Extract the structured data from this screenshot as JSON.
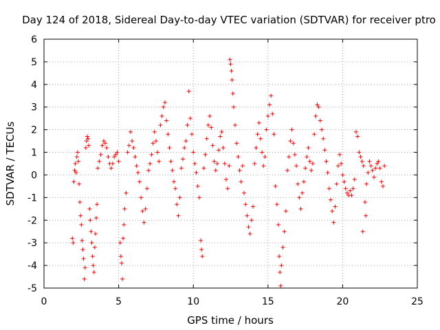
{
  "chart_data": {
    "type": "scatter",
    "title": "Day 124 of 2018, Sidereal Day-to-day VTEC variation (SDTVAR) for receiver ptro",
    "xlabel": "GPS time / hours",
    "ylabel": "SDTVAR / TECUs",
    "xlim": [
      0,
      25
    ],
    "ylim": [
      -5,
      6
    ],
    "xticks": [
      0,
      5,
      10,
      15,
      20,
      25
    ],
    "yticks": [
      -5,
      -4,
      -3,
      -2,
      -1,
      0,
      1,
      2,
      3,
      4,
      5,
      6
    ],
    "grid": true,
    "marker": "+",
    "color": "#ff0000",
    "series": [
      {
        "name": "SDTVAR",
        "points": [
          [
            1.9,
            -2.8
          ],
          [
            1.95,
            -3.0
          ],
          [
            2.0,
            -0.3
          ],
          [
            2.05,
            0.2
          ],
          [
            2.1,
            0.5
          ],
          [
            2.15,
            0.1
          ],
          [
            2.2,
            0.8
          ],
          [
            2.25,
            1.0
          ],
          [
            2.3,
            0.6
          ],
          [
            2.35,
            -0.4
          ],
          [
            2.4,
            -1.2
          ],
          [
            2.45,
            -1.8
          ],
          [
            2.5,
            -2.2
          ],
          [
            2.55,
            -2.9
          ],
          [
            2.6,
            -3.3
          ],
          [
            2.65,
            -3.7
          ],
          [
            2.7,
            -4.6
          ],
          [
            2.75,
            -4.1
          ],
          [
            2.8,
            1.2
          ],
          [
            2.85,
            1.5
          ],
          [
            2.9,
            1.7
          ],
          [
            2.95,
            1.6
          ],
          [
            3.0,
            1.3
          ],
          [
            3.05,
            -1.5
          ],
          [
            3.1,
            -2.0
          ],
          [
            3.15,
            -2.5
          ],
          [
            3.2,
            -3.0
          ],
          [
            3.25,
            -3.6
          ],
          [
            3.3,
            -4.0
          ],
          [
            3.35,
            -4.3
          ],
          [
            3.4,
            -3.2
          ],
          [
            3.45,
            -2.6
          ],
          [
            3.5,
            -1.9
          ],
          [
            3.55,
            -1.3
          ],
          [
            3.6,
            0.3
          ],
          [
            3.7,
            0.6
          ],
          [
            3.8,
            0.9
          ],
          [
            3.9,
            1.3
          ],
          [
            4.0,
            1.5
          ],
          [
            4.1,
            1.4
          ],
          [
            4.2,
            1.2
          ],
          [
            4.3,
            0.8
          ],
          [
            4.4,
            0.5
          ],
          [
            4.5,
            0.3
          ],
          [
            4.6,
            0.5
          ],
          [
            4.7,
            0.8
          ],
          [
            4.8,
            0.9
          ],
          [
            4.9,
            1.0
          ],
          [
            5.0,
            0.6
          ],
          [
            5.1,
            -3.0
          ],
          [
            5.15,
            -3.6
          ],
          [
            5.2,
            -3.9
          ],
          [
            5.25,
            -4.6
          ],
          [
            5.3,
            -2.8
          ],
          [
            5.35,
            -2.2
          ],
          [
            5.4,
            -1.5
          ],
          [
            5.5,
            -0.8
          ],
          [
            5.6,
            1.0
          ],
          [
            5.7,
            1.3
          ],
          [
            5.8,
            1.9
          ],
          [
            5.9,
            1.5
          ],
          [
            6.0,
            1.2
          ],
          [
            6.1,
            0.8
          ],
          [
            6.2,
            0.4
          ],
          [
            6.3,
            0.1
          ],
          [
            6.4,
            -0.3
          ],
          [
            6.5,
            -1.0
          ],
          [
            6.6,
            -1.6
          ],
          [
            6.7,
            -2.1
          ],
          [
            6.8,
            -1.5
          ],
          [
            6.9,
            -0.6
          ],
          [
            7.0,
            0.2
          ],
          [
            7.1,
            0.5
          ],
          [
            7.2,
            0.9
          ],
          [
            7.3,
            1.4
          ],
          [
            7.4,
            1.9
          ],
          [
            7.5,
            1.5
          ],
          [
            7.6,
            1.0
          ],
          [
            7.7,
            0.6
          ],
          [
            7.8,
            2.2
          ],
          [
            7.9,
            2.6
          ],
          [
            8.0,
            3.0
          ],
          [
            8.1,
            3.2
          ],
          [
            8.2,
            2.4
          ],
          [
            8.3,
            1.8
          ],
          [
            8.4,
            1.2
          ],
          [
            8.5,
            0.6
          ],
          [
            8.6,
            0.2
          ],
          [
            8.7,
            -0.3
          ],
          [
            8.8,
            -0.6
          ],
          [
            8.9,
            -1.3
          ],
          [
            9.0,
            -1.8
          ],
          [
            9.1,
            -1.0
          ],
          [
            9.2,
            0.3
          ],
          [
            9.3,
            0.7
          ],
          [
            9.4,
            1.2
          ],
          [
            9.5,
            1.5
          ],
          [
            9.6,
            2.2
          ],
          [
            9.7,
            3.7
          ],
          [
            9.8,
            2.5
          ],
          [
            9.9,
            1.8
          ],
          [
            10.0,
            1.0
          ],
          [
            10.1,
            0.5
          ],
          [
            10.2,
            0.1
          ],
          [
            10.3,
            -0.5
          ],
          [
            10.4,
            -1.0
          ],
          [
            10.5,
            -2.9
          ],
          [
            10.55,
            -3.3
          ],
          [
            10.6,
            -3.6
          ],
          [
            10.7,
            0.3
          ],
          [
            10.8,
            0.9
          ],
          [
            10.9,
            1.6
          ],
          [
            11.0,
            2.2
          ],
          [
            11.1,
            2.6
          ],
          [
            11.2,
            2.1
          ],
          [
            11.3,
            1.3
          ],
          [
            11.4,
            0.6
          ],
          [
            11.5,
            0.2
          ],
          [
            11.6,
            0.5
          ],
          [
            11.7,
            1.1
          ],
          [
            11.8,
            1.7
          ],
          [
            11.9,
            1.9
          ],
          [
            12.0,
            1.2
          ],
          [
            12.1,
            0.5
          ],
          [
            12.2,
            -0.2
          ],
          [
            12.3,
            -0.6
          ],
          [
            12.4,
            0.4
          ],
          [
            12.45,
            5.1
          ],
          [
            12.5,
            4.9
          ],
          [
            12.55,
            4.6
          ],
          [
            12.6,
            4.2
          ],
          [
            12.65,
            3.6
          ],
          [
            12.7,
            3.0
          ],
          [
            12.8,
            2.2
          ],
          [
            12.9,
            1.4
          ],
          [
            13.0,
            0.8
          ],
          [
            13.1,
            0.2
          ],
          [
            13.2,
            -0.3
          ],
          [
            13.3,
            0.4
          ],
          [
            13.4,
            -0.8
          ],
          [
            13.5,
            -1.3
          ],
          [
            13.6,
            -1.8
          ],
          [
            13.7,
            -2.3
          ],
          [
            13.8,
            -2.6
          ],
          [
            13.9,
            -2.0
          ],
          [
            14.0,
            -1.4
          ],
          [
            14.1,
            0.5
          ],
          [
            14.2,
            1.2
          ],
          [
            14.3,
            1.8
          ],
          [
            14.4,
            2.3
          ],
          [
            14.5,
            1.6
          ],
          [
            14.6,
            1.0
          ],
          [
            14.7,
            0.4
          ],
          [
            14.8,
            0.8
          ],
          [
            14.9,
            2.0
          ],
          [
            15.0,
            2.6
          ],
          [
            15.1,
            3.1
          ],
          [
            15.2,
            3.5
          ],
          [
            15.3,
            2.7
          ],
          [
            15.4,
            1.8
          ],
          [
            15.5,
            -0.5
          ],
          [
            15.6,
            -1.3
          ],
          [
            15.7,
            -2.2
          ],
          [
            15.75,
            -3.6
          ],
          [
            15.8,
            -4.3
          ],
          [
            15.85,
            -4.9
          ],
          [
            15.9,
            -4.0
          ],
          [
            16.0,
            -3.2
          ],
          [
            16.1,
            -2.5
          ],
          [
            16.2,
            -1.6
          ],
          [
            16.3,
            0.2
          ],
          [
            16.4,
            0.8
          ],
          [
            16.5,
            1.5
          ],
          [
            16.6,
            2.0
          ],
          [
            16.7,
            1.4
          ],
          [
            16.8,
            0.9
          ],
          [
            16.9,
            0.4
          ],
          [
            17.0,
            -0.4
          ],
          [
            17.1,
            -1.0
          ],
          [
            17.2,
            -1.5
          ],
          [
            17.3,
            -0.8
          ],
          [
            17.4,
            -0.3
          ],
          [
            17.5,
            0.3
          ],
          [
            17.6,
            0.8
          ],
          [
            17.7,
            1.2
          ],
          [
            17.8,
            0.6
          ],
          [
            17.9,
            0.2
          ],
          [
            18.0,
            0.5
          ],
          [
            18.1,
            1.8
          ],
          [
            18.2,
            2.6
          ],
          [
            18.3,
            3.1
          ],
          [
            18.4,
            3.0
          ],
          [
            18.5,
            2.4
          ],
          [
            18.6,
            2.0
          ],
          [
            18.7,
            1.6
          ],
          [
            18.8,
            1.1
          ],
          [
            18.9,
            0.6
          ],
          [
            19.0,
            0.1
          ],
          [
            19.1,
            -0.6
          ],
          [
            19.2,
            -1.1
          ],
          [
            19.3,
            -1.6
          ],
          [
            19.4,
            -2.1
          ],
          [
            19.5,
            -1.4
          ],
          [
            19.6,
            -0.4
          ],
          [
            19.7,
            0.4
          ],
          [
            19.8,
            0.9
          ],
          [
            19.9,
            0.5
          ],
          [
            20.0,
            0.0
          ],
          [
            20.1,
            -0.3
          ],
          [
            20.2,
            -0.6
          ],
          [
            20.3,
            -0.8
          ],
          [
            20.4,
            -0.9
          ],
          [
            20.5,
            -0.7
          ],
          [
            20.6,
            -0.9
          ],
          [
            20.7,
            -0.6
          ],
          [
            20.8,
            -0.2
          ],
          [
            20.9,
            1.9
          ],
          [
            21.0,
            1.7
          ],
          [
            21.1,
            1.0
          ],
          [
            21.2,
            0.8
          ],
          [
            21.3,
            0.6
          ],
          [
            21.35,
            -2.5
          ],
          [
            21.4,
            0.4
          ],
          [
            21.5,
            -1.2
          ],
          [
            21.55,
            -1.8
          ],
          [
            21.6,
            -0.4
          ],
          [
            21.7,
            0.1
          ],
          [
            21.8,
            0.6
          ],
          [
            21.9,
            0.4
          ],
          [
            22.0,
            0.2
          ],
          [
            22.1,
            -0.1
          ],
          [
            22.2,
            0.3
          ],
          [
            22.3,
            0.5
          ],
          [
            22.4,
            0.6
          ],
          [
            22.5,
            0.3
          ],
          [
            22.6,
            -0.3
          ],
          [
            22.7,
            -0.5
          ],
          [
            22.8,
            0.4
          ]
        ]
      }
    ]
  }
}
